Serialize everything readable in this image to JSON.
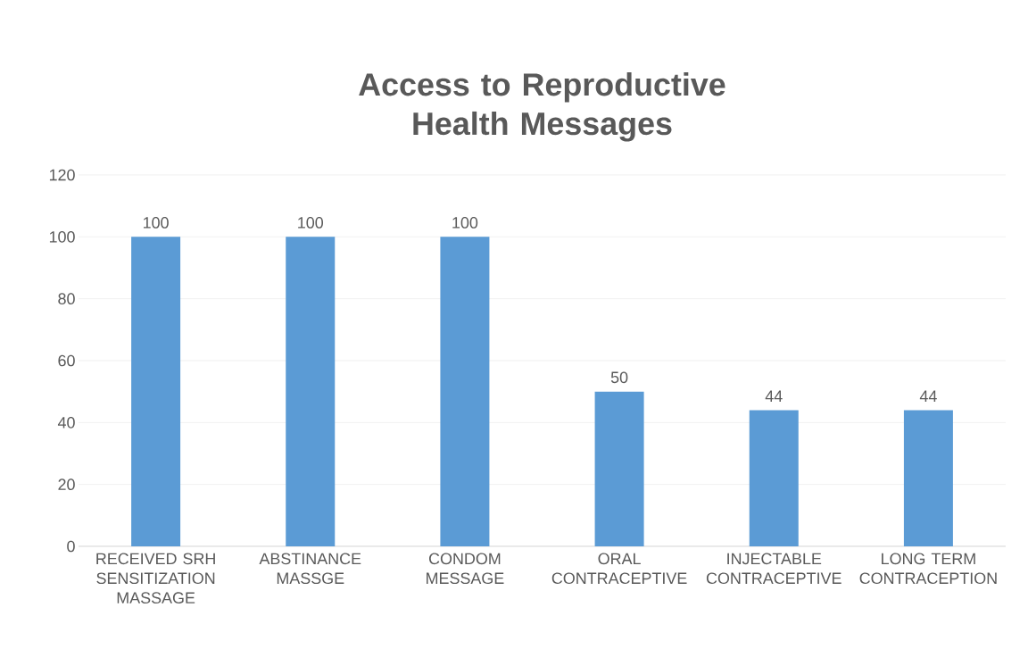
{
  "chart_data": {
    "type": "bar",
    "title": "Access to Reproductive Health Messages",
    "categories": [
      "RECEIVED SRH SENSITIZATION MASSAGE",
      "ABSTINANCE MASSGE",
      "CONDOM MESSAGE",
      "ORAL CONTRACEPTIVE",
      "INJECTABLE CONTRACEPTIVE",
      "LONG TERM CONTRACEPTION"
    ],
    "values": [
      100,
      100,
      100,
      50,
      44,
      44
    ],
    "color": "#5b9bd5",
    "ylim": [
      0,
      120
    ],
    "yticks": [
      0,
      20,
      40,
      60,
      80,
      100,
      120
    ],
    "grid": "y",
    "data_labels": true
  }
}
